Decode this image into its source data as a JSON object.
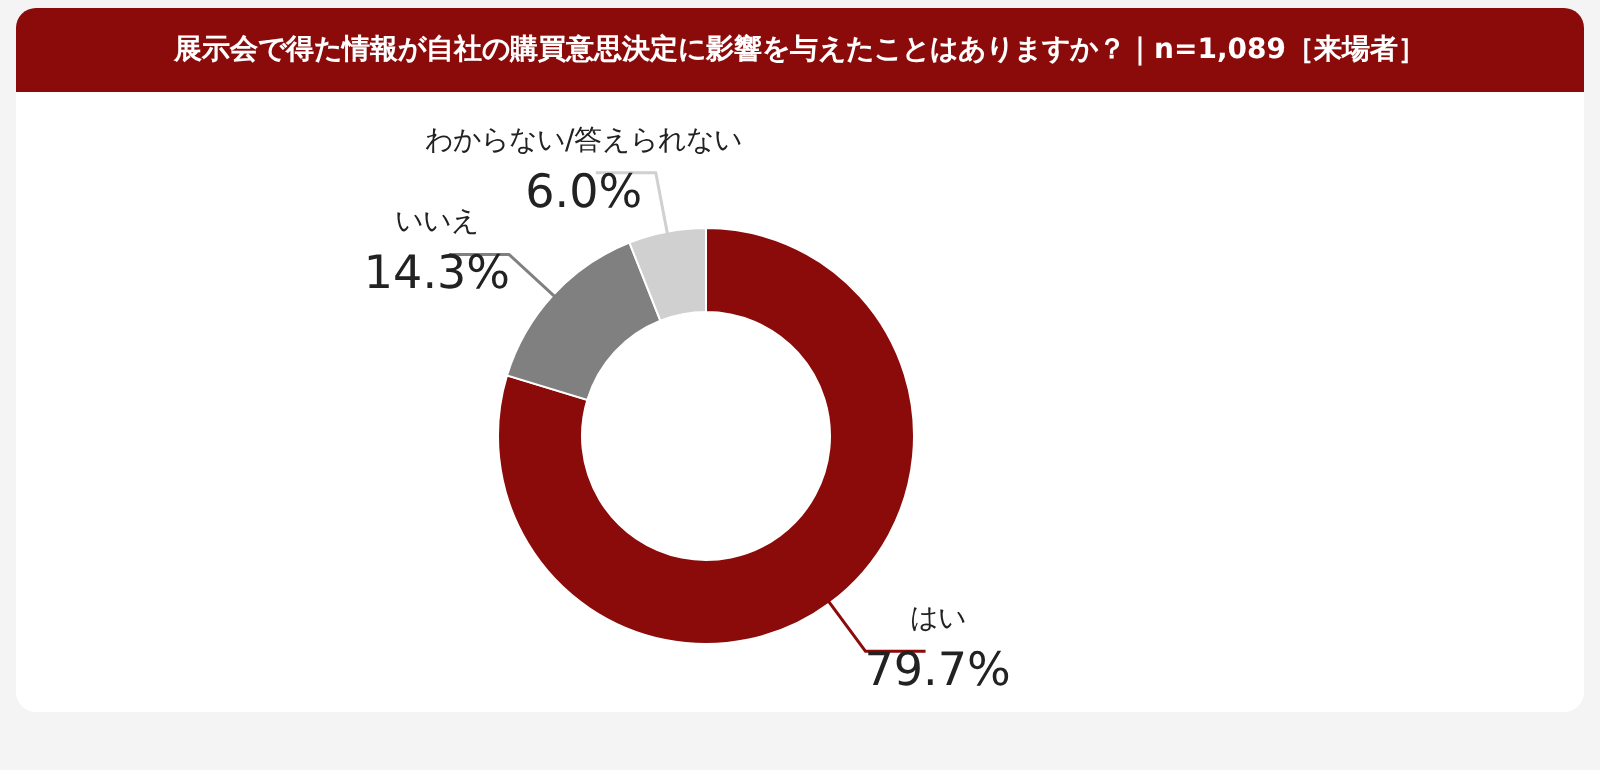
{
  "chart_data": {
    "type": "donut",
    "title": "展示会で得た情報が自社の購買意思決定に影響を与えたことはありますか？｜n=1,089［来場者］",
    "categories": [
      "はい",
      "いいえ",
      "わからない/答えられない"
    ],
    "values": [
      79.7,
      14.3,
      6.0
    ],
    "value_labels": [
      "79.7%",
      "14.3%",
      "6.0%"
    ],
    "colors": [
      "#8b0a0a",
      "#808080",
      "#d0d0d0"
    ]
  }
}
